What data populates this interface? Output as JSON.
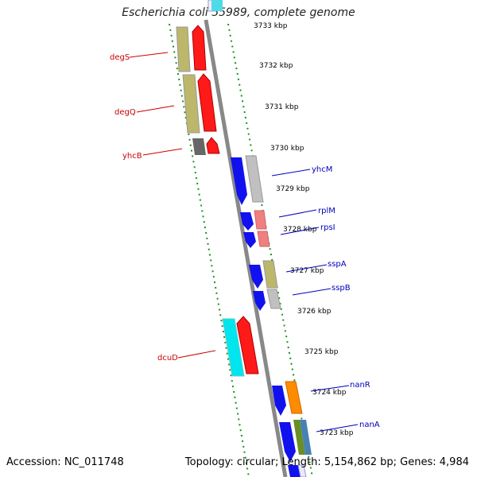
{
  "title": "Escherichia coli 55989, complete genome",
  "accession": "Accession: NC_011748",
  "topology": "Topology: circular; Length: 5,154,862 bp; Genes: 4,984",
  "colors": {
    "backbone": "#888888",
    "tick": "#1f8f1f",
    "label_left": "#cc0000",
    "label_right": "#0000bb"
  },
  "kbp_labels": [
    "3733 kbp",
    "3732 kbp",
    "3731 kbp",
    "3730 kbp",
    "3729 kbp",
    "3728 kbp",
    "3727 kbp",
    "3726 kbp",
    "3725 kbp",
    "3724 kbp",
    "3723 kbp"
  ],
  "genes_left": [
    "degS",
    "degQ",
    "yhcB",
    "dcuD"
  ],
  "genes_right": [
    "yhcM",
    "rplM",
    "rpsI",
    "sspA",
    "sspB",
    "nanR",
    "nanA"
  ]
}
